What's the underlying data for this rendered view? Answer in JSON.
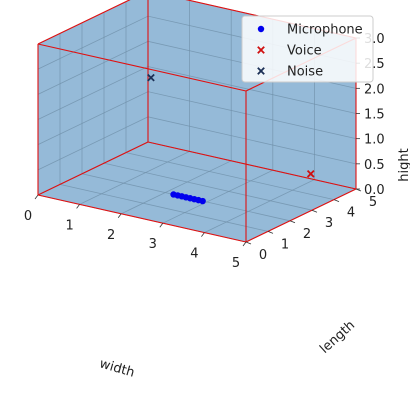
{
  "chart_data": {
    "type": "scatter",
    "projection": "3d",
    "xlabel": "width",
    "ylabel": "length",
    "zlabel": "hight",
    "xlim": [
      0,
      5
    ],
    "ylim": [
      0,
      5
    ],
    "zlim": [
      0,
      3
    ],
    "x_ticks": [
      "0",
      "1",
      "2",
      "3",
      "4",
      "5"
    ],
    "y_ticks": [
      "0",
      "1",
      "2",
      "3",
      "4",
      "5"
    ],
    "z_ticks": [
      "0.0",
      "0.5",
      "1.0",
      "1.5",
      "2.0",
      "2.5",
      "3.0"
    ],
    "grid": true,
    "legend_position": "top-right",
    "box_edge_color": "#e01010",
    "pane_color": "#8fb6d6",
    "series": [
      {
        "name": "Microphone",
        "marker": "circle",
        "color": "#0000ee",
        "points": [
          {
            "x": 2.2,
            "y": 2.0,
            "z": 0
          },
          {
            "x": 2.3,
            "y": 2.0,
            "z": 0
          },
          {
            "x": 2.4,
            "y": 2.0,
            "z": 0
          },
          {
            "x": 2.5,
            "y": 2.0,
            "z": 0
          },
          {
            "x": 2.6,
            "y": 2.0,
            "z": 0
          },
          {
            "x": 2.7,
            "y": 2.0,
            "z": 0
          },
          {
            "x": 2.8,
            "y": 2.0,
            "z": 0
          },
          {
            "x": 2.9,
            "y": 2.0,
            "z": 0
          }
        ]
      },
      {
        "name": "Voice",
        "marker": "x",
        "color": "#d01010",
        "points": [
          {
            "x": 4.6,
            "y": 3.7,
            "z": 0.5
          }
        ]
      },
      {
        "name": "Noise",
        "marker": "x",
        "color": "#1b2f55",
        "points": [
          {
            "x": 0.6,
            "y": 4.0,
            "z": 1.6
          }
        ]
      }
    ]
  }
}
